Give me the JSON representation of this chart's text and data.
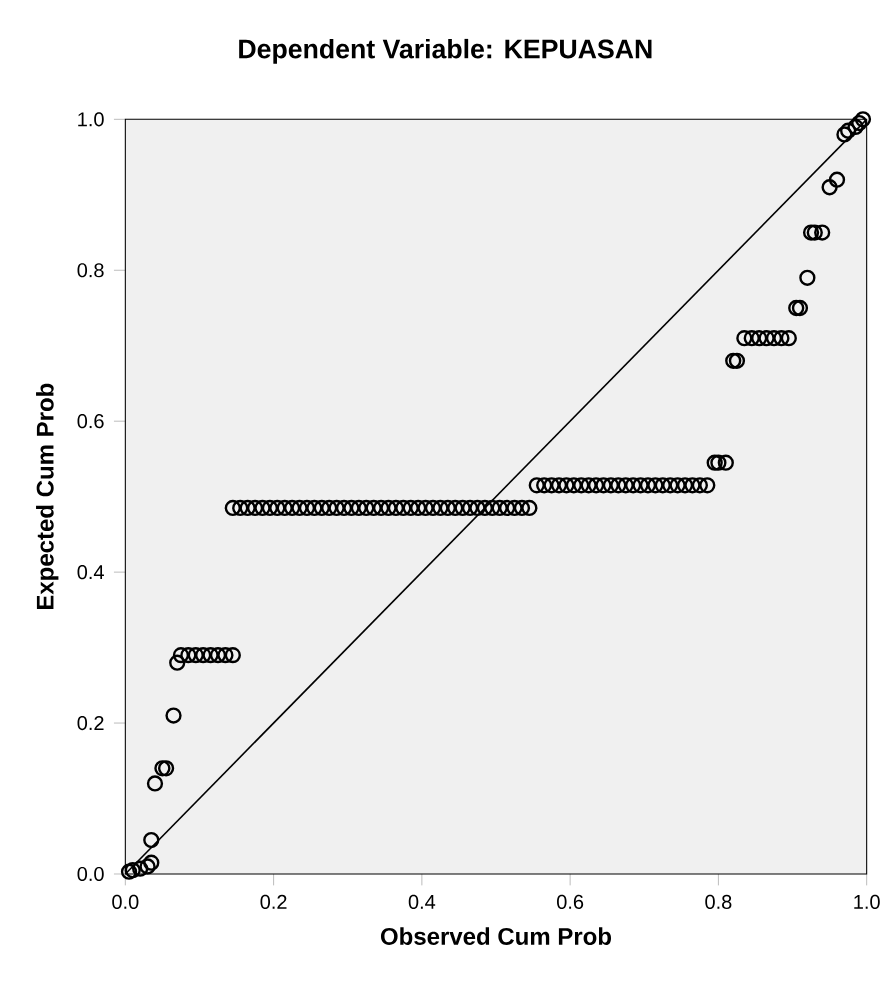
{
  "chart_data": {
    "type": "scatter",
    "title": "Dependent Variable: KEPUASAN",
    "xlabel": "Observed Cum Prob",
    "ylabel": "Expected Cum Prob",
    "xlim": [
      0,
      1
    ],
    "ylim": [
      0,
      1
    ],
    "xticks": [
      {
        "value": 0,
        "label": "0.0"
      },
      {
        "value": 0.2,
        "label": "0.2"
      },
      {
        "value": 0.4,
        "label": "0.4"
      },
      {
        "value": 0.6,
        "label": "0.6"
      },
      {
        "value": 0.8,
        "label": "0.8"
      },
      {
        "value": 1,
        "label": "1.0"
      }
    ],
    "yticks": [
      {
        "value": 0,
        "label": "0.0"
      },
      {
        "value": 0.2,
        "label": "0.2"
      },
      {
        "value": 0.4,
        "label": "0.4"
      },
      {
        "value": 0.6,
        "label": "0.6"
      },
      {
        "value": 0.8,
        "label": "0.8"
      },
      {
        "value": 1,
        "label": "1.0"
      }
    ],
    "marker": "circle",
    "grid": false,
    "series": [
      {
        "color": "#000000",
        "x": [
          0.005,
          0.01,
          0.02,
          0.03,
          0.035,
          0.035,
          0.04,
          0.05,
          0.055,
          0.065,
          0.07,
          0.075,
          0.085,
          0.095,
          0.105,
          0.115,
          0.125,
          0.135,
          0.145,
          0.145,
          0.155,
          0.165,
          0.175,
          0.185,
          0.195,
          0.205,
          0.215,
          0.225,
          0.235,
          0.245,
          0.255,
          0.265,
          0.275,
          0.285,
          0.295,
          0.305,
          0.315,
          0.325,
          0.335,
          0.345,
          0.355,
          0.365,
          0.375,
          0.385,
          0.395,
          0.405,
          0.415,
          0.425,
          0.435,
          0.445,
          0.455,
          0.465,
          0.475,
          0.485,
          0.495,
          0.505,
          0.515,
          0.525,
          0.535,
          0.545,
          0.555,
          0.565,
          0.575,
          0.585,
          0.595,
          0.605,
          0.615,
          0.625,
          0.635,
          0.645,
          0.655,
          0.665,
          0.675,
          0.685,
          0.695,
          0.705,
          0.715,
          0.725,
          0.735,
          0.745,
          0.755,
          0.765,
          0.775,
          0.785,
          0.795,
          0.8,
          0.81,
          0.82,
          0.825,
          0.835,
          0.845,
          0.855,
          0.865,
          0.875,
          0.885,
          0.895,
          0.905,
          0.91,
          0.92,
          0.925,
          0.93,
          0.94,
          0.95,
          0.96,
          0.97,
          0.975,
          0.985,
          0.99,
          0.995
        ],
        "values": [
          0.003,
          0.005,
          0.007,
          0.01,
          0.015,
          0.045,
          0.12,
          0.14,
          0.14,
          0.21,
          0.28,
          0.29,
          0.29,
          0.29,
          0.29,
          0.29,
          0.29,
          0.29,
          0.29,
          0.485,
          0.485,
          0.485,
          0.485,
          0.485,
          0.485,
          0.485,
          0.485,
          0.485,
          0.485,
          0.485,
          0.485,
          0.485,
          0.485,
          0.485,
          0.485,
          0.485,
          0.485,
          0.485,
          0.485,
          0.485,
          0.485,
          0.485,
          0.485,
          0.485,
          0.485,
          0.485,
          0.485,
          0.485,
          0.485,
          0.485,
          0.485,
          0.485,
          0.485,
          0.485,
          0.485,
          0.485,
          0.485,
          0.485,
          0.485,
          0.485,
          0.515,
          0.515,
          0.515,
          0.515,
          0.515,
          0.515,
          0.515,
          0.515,
          0.515,
          0.515,
          0.515,
          0.515,
          0.515,
          0.515,
          0.515,
          0.515,
          0.515,
          0.515,
          0.515,
          0.515,
          0.515,
          0.515,
          0.515,
          0.515,
          0.545,
          0.545,
          0.545,
          0.68,
          0.68,
          0.71,
          0.71,
          0.71,
          0.71,
          0.71,
          0.71,
          0.71,
          0.75,
          0.75,
          0.79,
          0.85,
          0.85,
          0.85,
          0.91,
          0.92,
          0.98,
          0.985,
          0.99,
          0.995,
          1.0
        ]
      },
      {
        "type": "line",
        "marker": "none",
        "color": "#000000",
        "x": [
          0,
          1
        ],
        "values": [
          0,
          1
        ]
      }
    ]
  }
}
